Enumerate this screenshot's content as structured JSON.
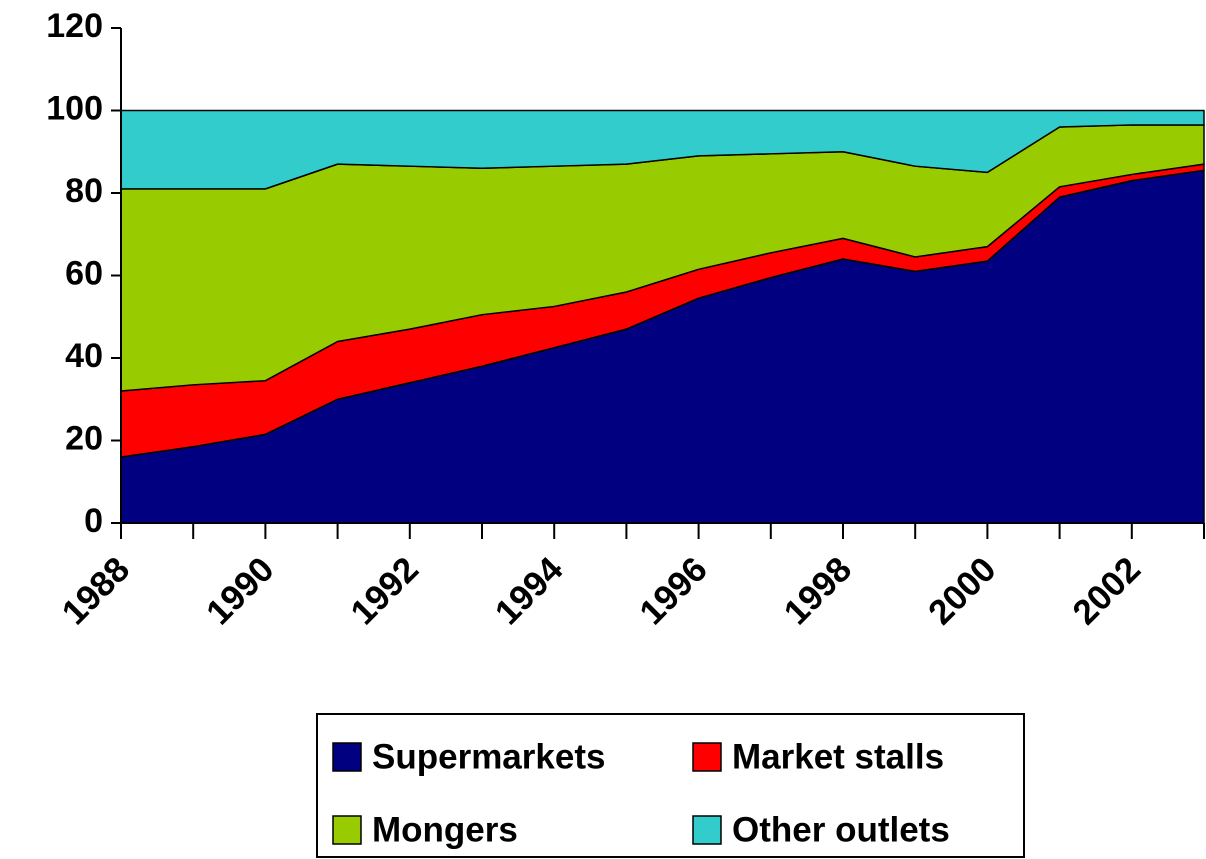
{
  "chart_data": {
    "type": "stacked_area",
    "categories": [
      "1988",
      null,
      "1990",
      null,
      "1992",
      null,
      "1994",
      null,
      "1996",
      null,
      "1998",
      null,
      "2000",
      null,
      "2002",
      null
    ],
    "series": [
      {
        "name": "Supermarkets",
        "color": "#000080",
        "values": [
          16,
          18.5,
          21.5,
          30,
          34,
          38,
          42.5,
          47,
          54.5,
          59.5,
          64,
          61,
          63.5,
          79,
          83,
          85.5
        ]
      },
      {
        "name": "Market stalls",
        "color": "#ff0000",
        "values": [
          16,
          15,
          13,
          14,
          13,
          12.5,
          10,
          9,
          7,
          6,
          5,
          3.5,
          3.5,
          2.5,
          1.5,
          1.5
        ]
      },
      {
        "name": "Mongers",
        "color": "#99cc00",
        "values": [
          49,
          47.5,
          46.5,
          43,
          39.5,
          35.5,
          34,
          31,
          27.5,
          24,
          21,
          22,
          18,
          14.5,
          12,
          9.5
        ]
      },
      {
        "name": "Other outlets",
        "color": "#33cccc",
        "values": [
          19,
          19,
          19,
          13,
          13.5,
          14,
          13.5,
          13,
          11,
          10.5,
          10,
          13.5,
          15,
          4,
          3.5,
          3.5
        ]
      }
    ],
    "ylim": [
      0,
      120
    ],
    "yticks": [
      0,
      20,
      40,
      60,
      80,
      100,
      120
    ]
  }
}
